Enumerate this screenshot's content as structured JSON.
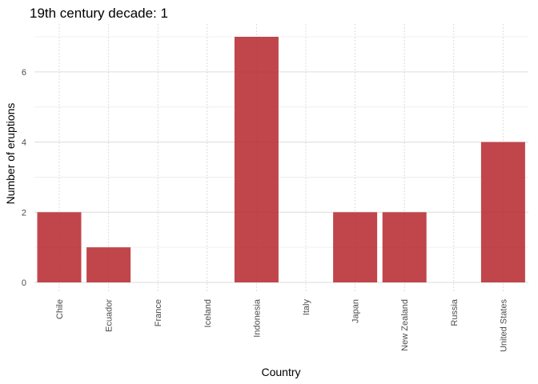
{
  "chart_data": {
    "type": "bar",
    "title": "19th century decade: 1",
    "xlabel": "Country",
    "ylabel": "Number of eruptions",
    "categories": [
      "Chile",
      "Ecuador",
      "France",
      "Iceland",
      "Indonesia",
      "Italy",
      "Japan",
      "New Zealand",
      "Russia",
      "United States"
    ],
    "values": [
      2,
      1,
      0,
      0,
      7,
      0,
      2,
      2,
      0,
      4
    ],
    "ylim": [
      0,
      7.2
    ],
    "yticks": [
      0,
      2,
      4,
      6
    ],
    "grid": true,
    "legend": "none",
    "colors": {
      "bar": "#b5262b"
    }
  }
}
